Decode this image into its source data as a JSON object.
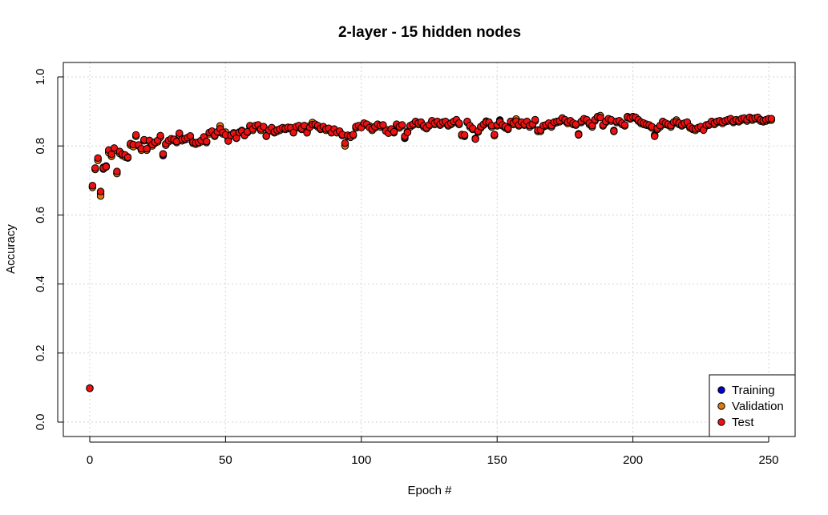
{
  "chart_data": {
    "type": "scatter",
    "title": "2-layer - 15 hidden nodes",
    "xlabel": "Epoch #",
    "ylabel": "Accuracy",
    "xlim": [
      0,
      250
    ],
    "ylim": [
      0,
      1
    ],
    "x_ticks": [
      "0",
      "50",
      "100",
      "150",
      "200",
      "250"
    ],
    "y_ticks": [
      "0.0",
      "0.2",
      "0.4",
      "0.6",
      "0.8",
      "1.0"
    ],
    "grid": true,
    "legend_position": "bottom-right",
    "series": [
      {
        "name": "Training",
        "color": "#0000cc",
        "values": [
          0.098,
          0.681,
          0.735,
          0.762,
          0.662,
          0.733,
          0.739,
          0.785,
          0.775,
          0.792,
          0.722,
          0.782,
          0.775,
          0.772,
          0.768,
          0.805,
          0.802,
          0.83,
          0.802,
          0.79,
          0.817,
          0.79,
          0.815,
          0.802,
          0.81,
          0.815,
          0.828,
          0.772,
          0.805,
          0.815,
          0.82,
          0.818,
          0.812,
          0.835,
          0.818,
          0.82,
          0.823,
          0.828,
          0.81,
          0.808,
          0.81,
          0.815,
          0.825,
          0.812,
          0.838,
          0.842,
          0.83,
          0.84,
          0.855,
          0.838,
          0.835,
          0.815,
          0.83,
          0.835,
          0.822,
          0.838,
          0.842,
          0.83,
          0.84,
          0.858,
          0.848,
          0.858,
          0.86,
          0.848,
          0.855,
          0.828,
          0.845,
          0.852,
          0.84,
          0.845,
          0.848,
          0.852,
          0.85,
          0.853,
          0.852,
          0.838,
          0.855,
          0.858,
          0.85,
          0.858,
          0.84,
          0.855,
          0.865,
          0.862,
          0.858,
          0.85,
          0.855,
          0.848,
          0.85,
          0.838,
          0.848,
          0.84,
          0.842,
          0.832,
          0.805,
          0.83,
          0.828,
          0.832,
          0.855,
          0.858,
          0.855,
          0.865,
          0.862,
          0.855,
          0.848,
          0.855,
          0.862,
          0.858,
          0.86,
          0.845,
          0.838,
          0.848,
          0.84,
          0.862,
          0.855,
          0.86,
          0.822,
          0.84,
          0.858,
          0.862,
          0.87,
          0.865,
          0.868,
          0.858,
          0.852,
          0.86,
          0.872,
          0.865,
          0.87,
          0.862,
          0.868,
          0.87,
          0.86,
          0.865,
          0.87,
          0.875,
          0.865,
          0.832,
          0.828,
          0.87,
          0.858,
          0.85,
          0.82,
          0.842,
          0.855,
          0.862,
          0.87,
          0.868,
          0.858,
          0.832,
          0.86,
          0.875,
          0.86,
          0.855,
          0.85,
          0.87,
          0.865,
          0.875,
          0.86,
          0.868,
          0.862,
          0.87,
          0.858,
          0.862,
          0.875,
          0.845,
          0.845,
          0.858,
          0.86,
          0.865,
          0.858,
          0.868,
          0.87,
          0.872,
          0.88,
          0.875,
          0.868,
          0.872,
          0.865,
          0.862,
          0.835,
          0.87,
          0.878,
          0.875,
          0.865,
          0.858,
          0.875,
          0.885,
          0.885,
          0.86,
          0.87,
          0.878,
          0.875,
          0.845,
          0.87,
          0.872,
          0.865,
          0.86,
          0.885,
          0.88,
          0.885,
          0.882,
          0.875,
          0.868,
          0.865,
          0.862,
          0.86,
          0.855,
          0.832,
          0.85,
          0.858,
          0.87,
          0.865,
          0.862,
          0.858,
          0.868,
          0.872,
          0.865,
          0.86,
          0.865,
          0.868,
          0.855,
          0.85,
          0.848,
          0.852,
          0.855,
          0.85,
          0.86,
          0.862,
          0.87,
          0.865,
          0.87,
          0.872,
          0.868,
          0.872,
          0.875,
          0.878,
          0.87,
          0.875,
          0.872,
          0.878,
          0.88,
          0.875,
          0.882,
          0.878,
          0.88,
          0.882,
          0.875,
          0.872,
          0.875,
          0.878,
          0.878
        ]
      },
      {
        "name": "Validation",
        "color": "#e07a10",
        "values": [
          0.098,
          0.68,
          0.732,
          0.758,
          0.655,
          0.738,
          0.742,
          0.78,
          0.77,
          0.788,
          0.72,
          0.778,
          0.772,
          0.768,
          0.765,
          0.802,
          0.798,
          0.828,
          0.8,
          0.788,
          0.815,
          0.788,
          0.812,
          0.8,
          0.808,
          0.812,
          0.825,
          0.775,
          0.802,
          0.812,
          0.818,
          0.815,
          0.81,
          0.832,
          0.815,
          0.818,
          0.82,
          0.825,
          0.808,
          0.805,
          0.808,
          0.812,
          0.822,
          0.81,
          0.835,
          0.84,
          0.828,
          0.838,
          0.858,
          0.835,
          0.84,
          0.818,
          0.832,
          0.838,
          0.825,
          0.84,
          0.845,
          0.832,
          0.838,
          0.855,
          0.845,
          0.855,
          0.858,
          0.845,
          0.852,
          0.83,
          0.842,
          0.848,
          0.838,
          0.842,
          0.845,
          0.85,
          0.848,
          0.85,
          0.85,
          0.84,
          0.852,
          0.855,
          0.848,
          0.855,
          0.842,
          0.858,
          0.868,
          0.86,
          0.855,
          0.848,
          0.852,
          0.845,
          0.848,
          0.84,
          0.845,
          0.842,
          0.84,
          0.83,
          0.8,
          0.828,
          0.825,
          0.83,
          0.852,
          0.855,
          0.858,
          0.862,
          0.86,
          0.858,
          0.845,
          0.852,
          0.86,
          0.855,
          0.858,
          0.848,
          0.84,
          0.845,
          0.838,
          0.86,
          0.852,
          0.858,
          0.825,
          0.842,
          0.855,
          0.86,
          0.868,
          0.862,
          0.865,
          0.855,
          0.85,
          0.858,
          0.87,
          0.862,
          0.868,
          0.86,
          0.865,
          0.868,
          0.858,
          0.862,
          0.868,
          0.872,
          0.862,
          0.83,
          0.83,
          0.868,
          0.855,
          0.848,
          0.822,
          0.84,
          0.852,
          0.86,
          0.872,
          0.865,
          0.855,
          0.83,
          0.858,
          0.872,
          0.858,
          0.852,
          0.848,
          0.868,
          0.862,
          0.878,
          0.858,
          0.865,
          0.86,
          0.868,
          0.855,
          0.86,
          0.872,
          0.842,
          0.842,
          0.855,
          0.858,
          0.862,
          0.855,
          0.865,
          0.868,
          0.87,
          0.878,
          0.872,
          0.865,
          0.87,
          0.862,
          0.86,
          0.832,
          0.868,
          0.875,
          0.872,
          0.862,
          0.855,
          0.872,
          0.882,
          0.888,
          0.858,
          0.868,
          0.875,
          0.872,
          0.842,
          0.868,
          0.87,
          0.862,
          0.858,
          0.882,
          0.878,
          0.882,
          0.88,
          0.872,
          0.865,
          0.862,
          0.86,
          0.858,
          0.852,
          0.83,
          0.848,
          0.855,
          0.868,
          0.862,
          0.86,
          0.855,
          0.865,
          0.875,
          0.862,
          0.858,
          0.862,
          0.865,
          0.852,
          0.848,
          0.845,
          0.85,
          0.852,
          0.848,
          0.858,
          0.86,
          0.868,
          0.862,
          0.868,
          0.87,
          0.865,
          0.87,
          0.872,
          0.875,
          0.868,
          0.872,
          0.87,
          0.875,
          0.878,
          0.872,
          0.88,
          0.875,
          0.878,
          0.88,
          0.872,
          0.87,
          0.872,
          0.875,
          0.875
        ]
      },
      {
        "name": "Test",
        "color": "#ee1111",
        "values": [
          0.098,
          0.685,
          0.736,
          0.765,
          0.668,
          0.736,
          0.74,
          0.788,
          0.776,
          0.794,
          0.726,
          0.784,
          0.776,
          0.774,
          0.767,
          0.807,
          0.804,
          0.832,
          0.803,
          0.792,
          0.818,
          0.792,
          0.816,
          0.804,
          0.811,
          0.816,
          0.83,
          0.777,
          0.806,
          0.816,
          0.821,
          0.819,
          0.813,
          0.837,
          0.819,
          0.821,
          0.824,
          0.829,
          0.811,
          0.809,
          0.811,
          0.816,
          0.826,
          0.813,
          0.839,
          0.843,
          0.831,
          0.841,
          0.85,
          0.839,
          0.832,
          0.814,
          0.831,
          0.836,
          0.823,
          0.839,
          0.843,
          0.831,
          0.841,
          0.859,
          0.849,
          0.859,
          0.861,
          0.849,
          0.856,
          0.829,
          0.846,
          0.853,
          0.841,
          0.846,
          0.849,
          0.853,
          0.851,
          0.854,
          0.853,
          0.839,
          0.856,
          0.859,
          0.851,
          0.859,
          0.838,
          0.854,
          0.862,
          0.863,
          0.859,
          0.851,
          0.856,
          0.849,
          0.851,
          0.839,
          0.849,
          0.838,
          0.843,
          0.833,
          0.808,
          0.831,
          0.829,
          0.833,
          0.856,
          0.859,
          0.853,
          0.866,
          0.863,
          0.853,
          0.849,
          0.856,
          0.863,
          0.859,
          0.861,
          0.843,
          0.837,
          0.849,
          0.841,
          0.863,
          0.856,
          0.861,
          0.828,
          0.839,
          0.859,
          0.863,
          0.871,
          0.866,
          0.869,
          0.859,
          0.853,
          0.861,
          0.873,
          0.866,
          0.871,
          0.863,
          0.869,
          0.871,
          0.861,
          0.866,
          0.871,
          0.876,
          0.866,
          0.833,
          0.832,
          0.871,
          0.859,
          0.851,
          0.82,
          0.843,
          0.856,
          0.863,
          0.869,
          0.869,
          0.859,
          0.833,
          0.861,
          0.87,
          0.861,
          0.856,
          0.851,
          0.871,
          0.866,
          0.872,
          0.861,
          0.869,
          0.863,
          0.871,
          0.859,
          0.863,
          0.876,
          0.846,
          0.846,
          0.859,
          0.861,
          0.866,
          0.859,
          0.869,
          0.871,
          0.873,
          0.881,
          0.876,
          0.869,
          0.873,
          0.866,
          0.863,
          0.833,
          0.871,
          0.879,
          0.876,
          0.866,
          0.859,
          0.876,
          0.884,
          0.882,
          0.861,
          0.871,
          0.879,
          0.876,
          0.843,
          0.871,
          0.873,
          0.866,
          0.861,
          0.884,
          0.881,
          0.884,
          0.883,
          0.876,
          0.869,
          0.866,
          0.863,
          0.861,
          0.856,
          0.828,
          0.851,
          0.859,
          0.871,
          0.866,
          0.863,
          0.859,
          0.869,
          0.87,
          0.866,
          0.861,
          0.866,
          0.869,
          0.856,
          0.851,
          0.849,
          0.853,
          0.856,
          0.846,
          0.861,
          0.863,
          0.871,
          0.866,
          0.871,
          0.873,
          0.869,
          0.873,
          0.876,
          0.879,
          0.871,
          0.876,
          0.873,
          0.879,
          0.881,
          0.876,
          0.883,
          0.879,
          0.881,
          0.883,
          0.876,
          0.873,
          0.876,
          0.879,
          0.879
        ]
      }
    ]
  }
}
